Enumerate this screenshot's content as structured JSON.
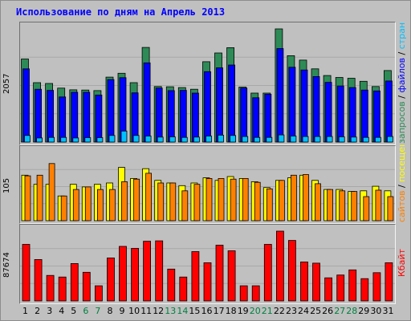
{
  "title": "Использование по дням на Апрель 2013",
  "colors": {
    "background": "#c0c0c0",
    "title": "#0000ff",
    "hits": "#2e8b57",
    "files": "#0000ff",
    "pages": "#00c0ff",
    "visits": "#ffff00",
    "sites": "#ff8000",
    "kbytes": "#ff0000",
    "weekend_label": "#008040",
    "weekday_label": "#000000"
  },
  "chart_data": [
    {
      "type": "bar",
      "name": "top",
      "categories": [
        "1",
        "2",
        "3",
        "4",
        "5",
        "6",
        "7",
        "8",
        "9",
        "10",
        "11",
        "12",
        "13",
        "14",
        "15",
        "16",
        "17",
        "18",
        "19",
        "20",
        "21",
        "22",
        "23",
        "24",
        "25",
        "26",
        "27",
        "28",
        "29",
        "30",
        "31"
      ],
      "ymax_label": "2057",
      "ylim": [
        0,
        2057
      ],
      "right_legend": [
        {
          "text": "запросов",
          "color": "#2e8b57"
        },
        {
          "text": " / ",
          "color": "#000000"
        },
        {
          "text": "файлов",
          "color": "#0000ff"
        },
        {
          "text": " / ",
          "color": "#000000"
        },
        {
          "text": "страниц",
          "color": "#00c0ff"
        }
      ],
      "series": [
        {
          "key": "hits",
          "values": [
            1510,
            1080,
            1065,
            980,
            950,
            945,
            935,
            1180,
            1250,
            1080,
            1720,
            1010,
            1005,
            990,
            960,
            1460,
            1620,
            1715,
            1000,
            890,
            890,
            2057,
            1570,
            1490,
            1330,
            1210,
            1175,
            1160,
            1105,
            1010,
            1300
          ]
        },
        {
          "key": "files",
          "values": [
            1330,
            960,
            940,
            820,
            905,
            905,
            855,
            1135,
            1170,
            895,
            1440,
            980,
            935,
            940,
            890,
            1280,
            1350,
            1400,
            980,
            805,
            870,
            1700,
            1360,
            1310,
            1190,
            1085,
            1020,
            990,
            945,
            930,
            1110
          ]
        },
        {
          "key": "pages",
          "values": [
            120,
            75,
            85,
            85,
            75,
            80,
            80,
            120,
            200,
            120,
            110,
            90,
            95,
            85,
            90,
            110,
            125,
            120,
            100,
            85,
            85,
            130,
            110,
            100,
            100,
            100,
            95,
            90,
            85,
            85,
            100
          ]
        }
      ]
    },
    {
      "type": "bar",
      "name": "middle",
      "categories": [
        "1",
        "2",
        "3",
        "4",
        "5",
        "6",
        "7",
        "8",
        "9",
        "10",
        "11",
        "12",
        "13",
        "14",
        "15",
        "16",
        "17",
        "18",
        "19",
        "20",
        "21",
        "22",
        "23",
        "24",
        "25",
        "26",
        "27",
        "28",
        "29",
        "30",
        "31"
      ],
      "ymax_label": "105",
      "ylim": [
        0,
        105
      ],
      "right_legend": [
        {
          "text": "сайтов",
          "color": "#ff8000"
        },
        {
          "text": " / ",
          "color": "#000000"
        },
        {
          "text": "посещений",
          "color": "#ffff00"
        }
      ],
      "series": [
        {
          "key": "visits",
          "values": [
            70,
            56,
            56,
            38,
            56,
            52,
            56,
            58,
            82,
            65,
            80,
            62,
            58,
            54,
            58,
            66,
            62,
            68,
            65,
            60,
            51,
            62,
            66,
            70,
            62,
            48,
            48,
            45,
            46,
            53,
            46
          ]
        },
        {
          "key": "sites",
          "values": [
            69,
            70,
            88,
            38,
            48,
            52,
            48,
            48,
            60,
            64,
            73,
            58,
            58,
            46,
            56,
            65,
            65,
            64,
            65,
            59,
            49,
            62,
            70,
            71,
            57,
            48,
            46,
            45,
            37,
            47,
            37
          ]
        }
      ]
    },
    {
      "type": "bar",
      "name": "bottom",
      "categories": [
        "1",
        "2",
        "3",
        "4",
        "5",
        "6",
        "7",
        "8",
        "9",
        "10",
        "11",
        "12",
        "13",
        "14",
        "15",
        "16",
        "17",
        "18",
        "19",
        "20",
        "21",
        "22",
        "23",
        "24",
        "25",
        "26",
        "27",
        "28",
        "29",
        "30",
        "31"
      ],
      "ymax_label": "87674",
      "ylim": [
        0,
        87674
      ],
      "right_legend": [
        {
          "text": "Кбайт",
          "color": "#ff0000"
        }
      ],
      "series": [
        {
          "key": "kbytes",
          "values": [
            71000,
            52000,
            32000,
            30000,
            47000,
            36000,
            19000,
            54000,
            68500,
            66000,
            75000,
            75500,
            40000,
            30000,
            62000,
            48000,
            70000,
            63000,
            19000,
            19000,
            71000,
            87674,
            76000,
            49000,
            47500,
            29000,
            32500,
            39000,
            28000,
            35500,
            48000
          ]
        }
      ]
    }
  ],
  "x_labels": [
    {
      "text": "1",
      "weekend": false
    },
    {
      "text": "2",
      "weekend": false
    },
    {
      "text": "3",
      "weekend": false
    },
    {
      "text": "4",
      "weekend": false
    },
    {
      "text": "5",
      "weekend": false
    },
    {
      "text": "6",
      "weekend": true
    },
    {
      "text": "7",
      "weekend": true
    },
    {
      "text": "8",
      "weekend": false
    },
    {
      "text": "9",
      "weekend": false
    },
    {
      "text": "10",
      "weekend": false
    },
    {
      "text": "11",
      "weekend": false
    },
    {
      "text": "12",
      "weekend": false
    },
    {
      "text": "13",
      "weekend": true
    },
    {
      "text": "14",
      "weekend": true
    },
    {
      "text": "15",
      "weekend": false
    },
    {
      "text": "16",
      "weekend": false
    },
    {
      "text": "17",
      "weekend": false
    },
    {
      "text": "18",
      "weekend": false
    },
    {
      "text": "19",
      "weekend": false
    },
    {
      "text": "20",
      "weekend": true
    },
    {
      "text": "21",
      "weekend": true
    },
    {
      "text": "22",
      "weekend": false
    },
    {
      "text": "23",
      "weekend": false
    },
    {
      "text": "24",
      "weekend": false
    },
    {
      "text": "25",
      "weekend": false
    },
    {
      "text": "26",
      "weekend": false
    },
    {
      "text": "27",
      "weekend": true
    },
    {
      "text": "28",
      "weekend": true
    },
    {
      "text": "29",
      "weekend": false
    },
    {
      "text": "30",
      "weekend": false
    },
    {
      "text": "31",
      "weekend": false
    }
  ]
}
